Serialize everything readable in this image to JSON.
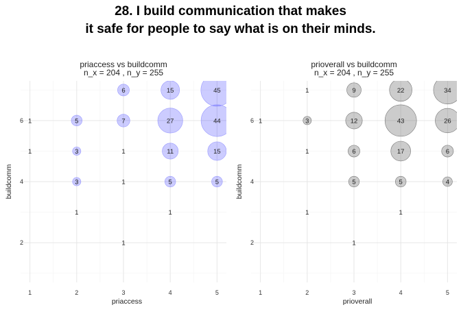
{
  "title_line1": "28. I build communication that makes",
  "title_line2": "it safe for people to say what is on their minds.",
  "chart_data": [
    {
      "type": "scatter",
      "title_line1": "priaccess vs buildcomm",
      "title_line2": "n_x = 204 , n_y = 255",
      "xlabel": "priaccess",
      "ylabel": "buildcomm",
      "x_ticks": [
        1,
        2,
        3,
        4,
        5
      ],
      "y_ticks": [
        2,
        4,
        6
      ],
      "xlim": [
        0.8,
        5.2
      ],
      "ylim": [
        0.7,
        7.3
      ],
      "grid": true,
      "fill": "#0000ff",
      "fill_opacity": 0.2,
      "stroke": "#9999ff",
      "points": [
        {
          "x": 1,
          "y": 6,
          "n": 1
        },
        {
          "x": 1,
          "y": 5,
          "n": 1
        },
        {
          "x": 2,
          "y": 6,
          "n": 5
        },
        {
          "x": 2,
          "y": 5,
          "n": 3
        },
        {
          "x": 2,
          "y": 4,
          "n": 3
        },
        {
          "x": 2,
          "y": 3,
          "n": 1
        },
        {
          "x": 3,
          "y": 7,
          "n": 6
        },
        {
          "x": 3,
          "y": 6,
          "n": 7
        },
        {
          "x": 3,
          "y": 5,
          "n": 1
        },
        {
          "x": 3,
          "y": 4,
          "n": 1
        },
        {
          "x": 3,
          "y": 2,
          "n": 1
        },
        {
          "x": 4,
          "y": 7,
          "n": 15
        },
        {
          "x": 4,
          "y": 6,
          "n": 27
        },
        {
          "x": 4,
          "y": 5,
          "n": 11
        },
        {
          "x": 4,
          "y": 4,
          "n": 5
        },
        {
          "x": 4,
          "y": 3,
          "n": 1
        },
        {
          "x": 5,
          "y": 7,
          "n": 45
        },
        {
          "x": 5,
          "y": 6,
          "n": 44
        },
        {
          "x": 5,
          "y": 5,
          "n": 15
        },
        {
          "x": 5,
          "y": 4,
          "n": 5
        }
      ]
    },
    {
      "type": "scatter",
      "title_line1": "prioverall vs buildcomm",
      "title_line2": "n_x = 204 , n_y = 255",
      "xlabel": "prioverall",
      "ylabel": "buildcomm",
      "x_ticks": [
        1,
        2,
        3,
        4,
        5
      ],
      "y_ticks": [
        2,
        4,
        6
      ],
      "xlim": [
        0.8,
        5.2
      ],
      "ylim": [
        0.7,
        7.3
      ],
      "grid": true,
      "fill": "#808080",
      "fill_opacity": 0.4,
      "stroke": "#777777",
      "points": [
        {
          "x": 1,
          "y": 6,
          "n": 1
        },
        {
          "x": 2,
          "y": 7,
          "n": 1
        },
        {
          "x": 2,
          "y": 6,
          "n": 3
        },
        {
          "x": 2,
          "y": 5,
          "n": 1
        },
        {
          "x": 2,
          "y": 3,
          "n": 1
        },
        {
          "x": 3,
          "y": 7,
          "n": 9
        },
        {
          "x": 3,
          "y": 6,
          "n": 12
        },
        {
          "x": 3,
          "y": 5,
          "n": 6
        },
        {
          "x": 3,
          "y": 4,
          "n": 5
        },
        {
          "x": 3,
          "y": 2,
          "n": 1
        },
        {
          "x": 4,
          "y": 7,
          "n": 22
        },
        {
          "x": 4,
          "y": 6,
          "n": 43
        },
        {
          "x": 4,
          "y": 5,
          "n": 17
        },
        {
          "x": 4,
          "y": 4,
          "n": 5
        },
        {
          "x": 4,
          "y": 3,
          "n": 1
        },
        {
          "x": 5,
          "y": 7,
          "n": 34
        },
        {
          "x": 5,
          "y": 6,
          "n": 26
        },
        {
          "x": 5,
          "y": 5,
          "n": 6
        },
        {
          "x": 5,
          "y": 4,
          "n": 4
        }
      ]
    }
  ]
}
